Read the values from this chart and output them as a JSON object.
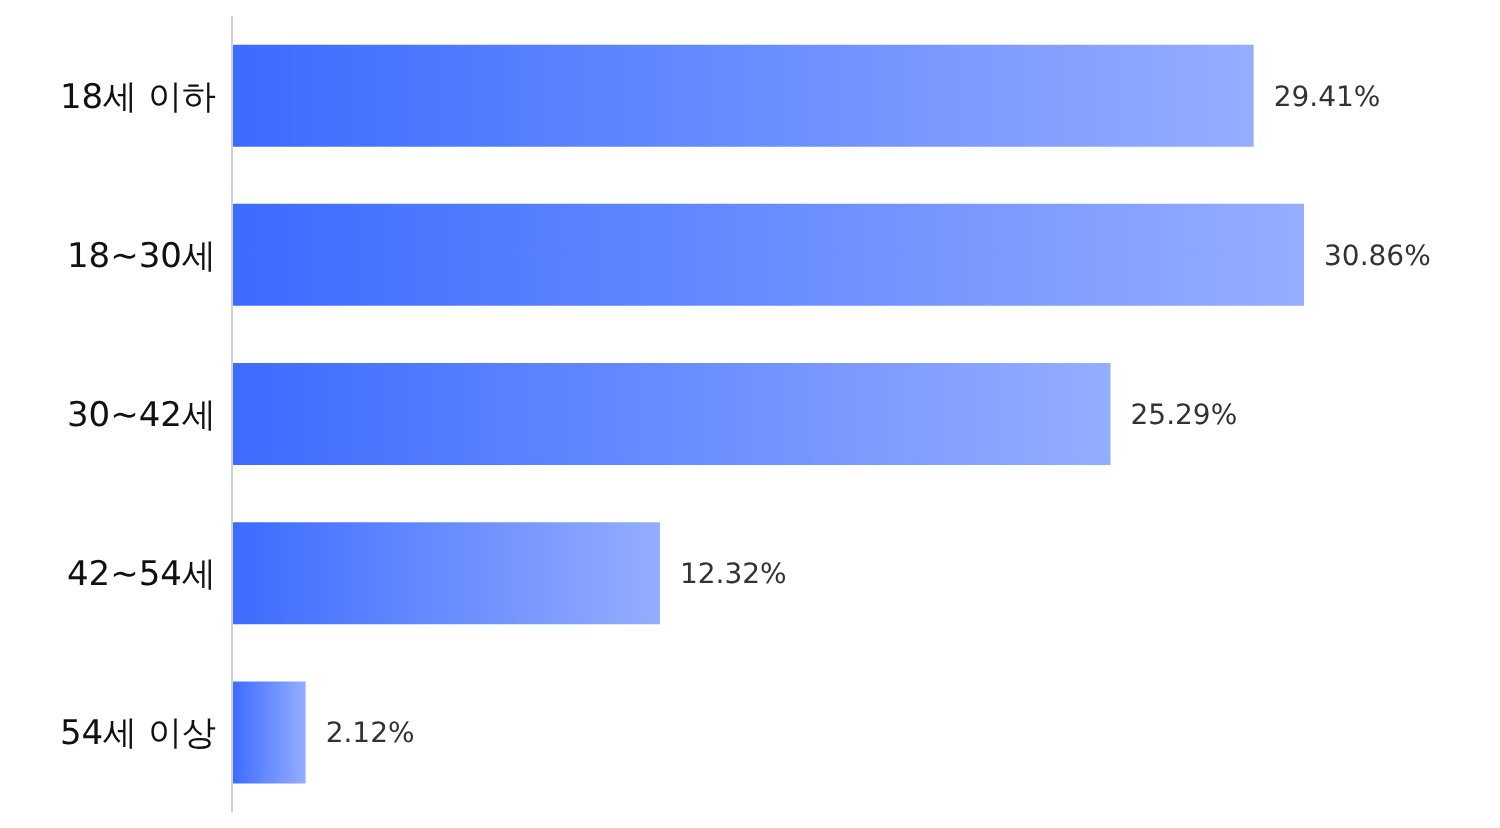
{
  "chart_data": {
    "type": "bar",
    "orientation": "horizontal",
    "categories": [
      "18세 이하",
      "18~30세",
      "30~42세",
      "42~54세",
      "54세 이상"
    ],
    "values": [
      29.41,
      30.86,
      25.29,
      12.32,
      2.12
    ],
    "value_labels": [
      "29.41%",
      "30.86%",
      "25.29%",
      "12.32%",
      "2.12%"
    ],
    "color": "#3d6bff",
    "grid": false,
    "legend": false
  }
}
